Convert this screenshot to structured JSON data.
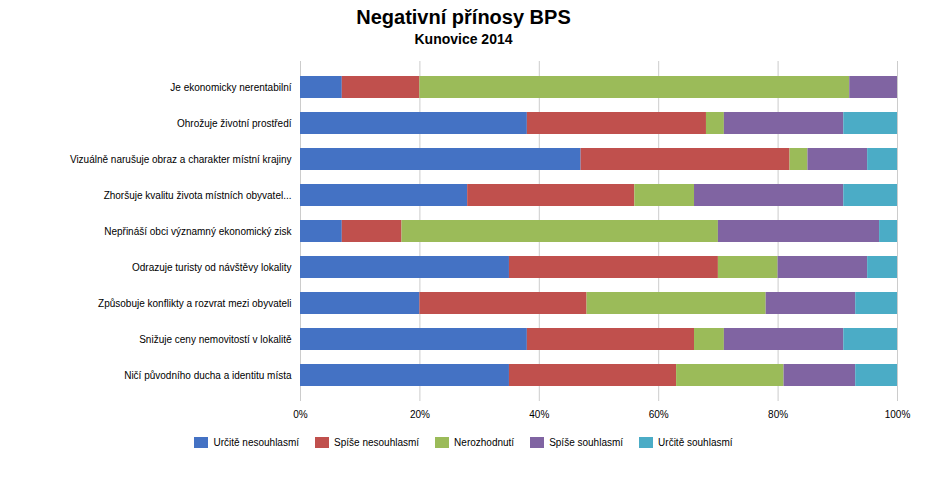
{
  "chart_data": {
    "type": "bar",
    "orientation": "horizontal",
    "stacked": true,
    "title": "Negativní přínosy BPS",
    "subtitle": "Kunovice 2014",
    "categories": [
      "Je ekonomicky nerentabilní",
      "Ohrožuje životní prostředí",
      "Vizuálně narušuje obraz a charakter místní krajiny",
      "Zhoršuje kvalitu života místních obyvatel...",
      "Nepřináší obci významný ekonomický zisk",
      "Odrazuje turisty od návštěvy lokality",
      "Způsobuje konflikty a rozvrat mezi obyvateli",
      "Snižuje ceny nemovitostí v lokalitě",
      "Ničí původního ducha a identitu místa"
    ],
    "series": [
      {
        "name": "Určitě nesouhlasmí",
        "color": "#4472C4",
        "values": [
          7,
          38,
          47,
          28,
          7,
          35,
          20,
          38,
          35
        ]
      },
      {
        "name": "Spíše nesouhlasmí",
        "color": "#C0504D",
        "values": [
          13,
          30,
          35,
          28,
          10,
          35,
          28,
          28,
          28
        ]
      },
      {
        "name": "Nerozhodnutí",
        "color": "#9BBB59",
        "values": [
          72,
          3,
          3,
          10,
          53,
          10,
          30,
          5,
          18
        ]
      },
      {
        "name": "Spíše souhlasmí",
        "color": "#8064A2",
        "values": [
          8,
          20,
          10,
          25,
          27,
          15,
          15,
          20,
          12
        ]
      },
      {
        "name": "Určitě souhlasmí",
        "color": "#4BACC6",
        "values": [
          0,
          9,
          5,
          9,
          3,
          5,
          7,
          9,
          7
        ]
      }
    ],
    "xlim": [
      0,
      100
    ],
    "xticks": [
      {
        "value": 0,
        "label": "0%"
      },
      {
        "value": 20,
        "label": "20%"
      },
      {
        "value": 40,
        "label": "40%"
      },
      {
        "value": 60,
        "label": "60%"
      },
      {
        "value": 80,
        "label": "80%"
      },
      {
        "value": 100,
        "label": "100%"
      }
    ],
    "grid": true,
    "legend": "bottom"
  }
}
